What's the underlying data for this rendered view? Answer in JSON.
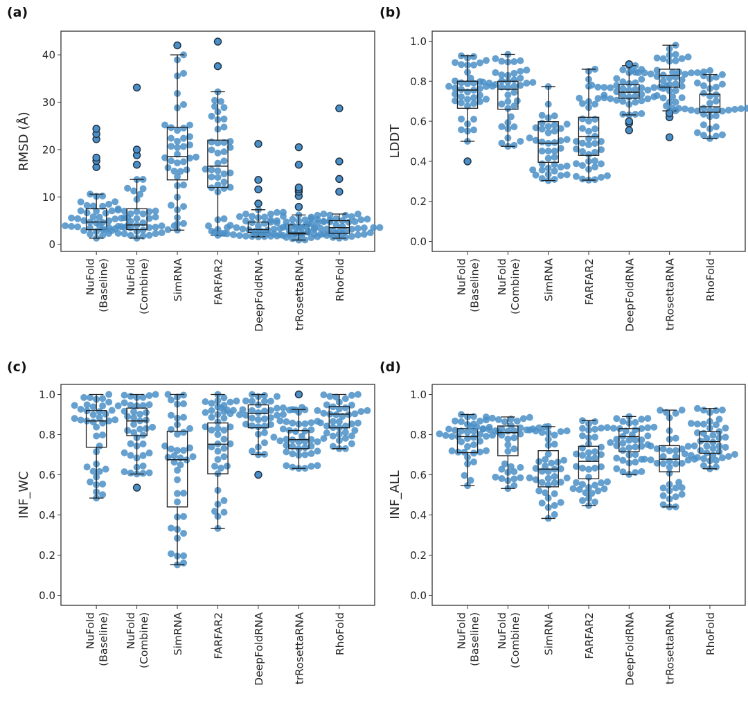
{
  "figure": {
    "categories": [
      "NuFold\n(Baseline)",
      "NuFold\n(Combine)",
      "SimRNA",
      "FARFAR2",
      "DeepFoldRNA",
      "trRosettaRNA",
      "RhoFold"
    ],
    "point_color": "#4a8fc7",
    "box_color": "#1a1a1a"
  },
  "chart_data": [
    {
      "type": "box",
      "panel_label": "(a)",
      "ylabel": "RMSD (Å)",
      "ylim": [
        -1.5,
        45
      ],
      "yticks": [
        0,
        10,
        20,
        30,
        40
      ],
      "ytick_labels": [
        "0",
        "10",
        "20",
        "30",
        "40"
      ],
      "categories": [
        "NuFold (Baseline)",
        "NuFold (Combine)",
        "SimRNA",
        "FARFAR2",
        "DeepFoldRNA",
        "trRosettaRNA",
        "RhoFold"
      ],
      "boxes": [
        {
          "q1": 3.1,
          "median": 4.7,
          "q3": 7.5,
          "whisker_low": 1.3,
          "whisker_high": 10.6,
          "outliers": [
            16.3,
            17.6,
            18.3,
            22.2,
            23.3,
            24.4
          ]
        },
        {
          "q1": 3.1,
          "median": 4.1,
          "q3": 7.5,
          "whisker_low": 1.3,
          "whisker_high": 13.7,
          "outliers": [
            16.8,
            18.8,
            20.0,
            33.1
          ]
        },
        {
          "q1": 13.6,
          "median": 18.5,
          "q3": 24.7,
          "whisker_low": 3.0,
          "whisker_high": 40.0,
          "outliers": [
            42.0
          ]
        },
        {
          "q1": 12.0,
          "median": 16.5,
          "q3": 22.0,
          "whisker_low": 1.9,
          "whisker_high": 32.2,
          "outliers": [
            37.6,
            42.8
          ]
        },
        {
          "q1": 2.5,
          "median": 3.1,
          "q3": 4.7,
          "whisker_low": 1.6,
          "whisker_high": 7.3,
          "outliers": [
            8.6,
            11.6,
            13.6,
            21.2
          ]
        },
        {
          "q1": 2.2,
          "median": 2.4,
          "q3": 4.1,
          "whisker_low": 0.9,
          "whisker_high": 6.2,
          "outliers": [
            7.9,
            10.2,
            11.1,
            11.6,
            12.0,
            16.8,
            20.5
          ]
        },
        {
          "q1": 2.3,
          "median": 3.5,
          "q3": 5.0,
          "whisker_low": 1.3,
          "whisker_high": 6.4,
          "outliers": [
            11.1,
            13.8,
            17.5,
            28.7
          ]
        }
      ]
    },
    {
      "type": "box",
      "panel_label": "(b)",
      "ylabel": "LDDT",
      "ylim": [
        -0.05,
        1.05
      ],
      "yticks": [
        0.0,
        0.2,
        0.4,
        0.6,
        0.8,
        1.0
      ],
      "ytick_labels": [
        "0.0",
        "0.2",
        "0.4",
        "0.6",
        "0.8",
        "1.0"
      ],
      "categories": [
        "NuFold (Baseline)",
        "NuFold (Combine)",
        "SimRNA",
        "FARFAR2",
        "DeepFoldRNA",
        "trRosettaRNA",
        "RhoFold"
      ],
      "boxes": [
        {
          "q1": 0.665,
          "median": 0.756,
          "q3": 0.8,
          "whisker_low": 0.5,
          "whisker_high": 0.927,
          "outliers": [
            0.4
          ]
        },
        {
          "q1": 0.66,
          "median": 0.76,
          "q3": 0.8,
          "whisker_low": 0.475,
          "whisker_high": 0.934,
          "outliers": []
        },
        {
          "q1": 0.395,
          "median": 0.49,
          "q3": 0.598,
          "whisker_low": 0.304,
          "whisker_high": 0.773,
          "outliers": []
        },
        {
          "q1": 0.43,
          "median": 0.523,
          "q3": 0.62,
          "whisker_low": 0.306,
          "whisker_high": 0.86,
          "outliers": []
        },
        {
          "q1": 0.715,
          "median": 0.745,
          "q3": 0.783,
          "whisker_low": 0.632,
          "whisker_high": 0.878,
          "outliers": [
            0.555,
            0.59,
            0.6,
            0.885
          ]
        },
        {
          "q1": 0.77,
          "median": 0.829,
          "q3": 0.86,
          "whisker_low": 0.652,
          "whisker_high": 0.98,
          "outliers": [
            0.52,
            0.62,
            0.64
          ]
        },
        {
          "q1": 0.645,
          "median": 0.672,
          "q3": 0.735,
          "whisker_low": 0.514,
          "whisker_high": 0.833,
          "outliers": []
        }
      ]
    },
    {
      "type": "box",
      "panel_label": "(c)",
      "ylabel": "INF_WC",
      "ylim": [
        -0.05,
        1.05
      ],
      "yticks": [
        0.0,
        0.2,
        0.4,
        0.6,
        0.8,
        1.0
      ],
      "ytick_labels": [
        "0.0",
        "0.2",
        "0.4",
        "0.6",
        "0.8",
        "1.0"
      ],
      "categories": [
        "NuFold (Baseline)",
        "NuFold (Combine)",
        "SimRNA",
        "FARFAR2",
        "DeepFoldRNA",
        "trRosettaRNA",
        "RhoFold"
      ],
      "boxes": [
        {
          "q1": 0.737,
          "median": 0.868,
          "q3": 0.92,
          "whisker_low": 0.484,
          "whisker_high": 1.0,
          "outliers": []
        },
        {
          "q1": 0.795,
          "median": 0.868,
          "q3": 0.932,
          "whisker_low": 0.604,
          "whisker_high": 1.0,
          "outliers": [
            0.536
          ]
        },
        {
          "q1": 0.44,
          "median": 0.675,
          "q3": 0.817,
          "whisker_low": 0.152,
          "whisker_high": 1.0,
          "outliers": []
        },
        {
          "q1": 0.605,
          "median": 0.752,
          "q3": 0.858,
          "whisker_low": 0.333,
          "whisker_high": 1.0,
          "outliers": []
        },
        {
          "q1": 0.834,
          "median": 0.906,
          "q3": 0.948,
          "whisker_low": 0.7,
          "whisker_high": 1.0,
          "outliers": [
            0.6
          ]
        },
        {
          "q1": 0.73,
          "median": 0.775,
          "q3": 0.82,
          "whisker_low": 0.632,
          "whisker_high": 0.925,
          "outliers": [
            1.0
          ]
        },
        {
          "q1": 0.834,
          "median": 0.902,
          "q3": 0.94,
          "whisker_low": 0.73,
          "whisker_high": 1.0,
          "outliers": []
        }
      ]
    },
    {
      "type": "box",
      "panel_label": "(d)",
      "ylabel": "INF_ALL",
      "ylim": [
        -0.05,
        1.05
      ],
      "yticks": [
        0.0,
        0.2,
        0.4,
        0.6,
        0.8,
        1.0
      ],
      "ytick_labels": [
        "0.0",
        "0.2",
        "0.4",
        "0.6",
        "0.8",
        "1.0"
      ],
      "categories": [
        "NuFold (Baseline)",
        "NuFold (Combine)",
        "SimRNA",
        "FARFAR2",
        "DeepFoldRNA",
        "trRosettaRNA",
        "RhoFold"
      ],
      "boxes": [
        {
          "q1": 0.71,
          "median": 0.79,
          "q3": 0.83,
          "whisker_low": 0.546,
          "whisker_high": 0.9,
          "outliers": []
        },
        {
          "q1": 0.695,
          "median": 0.81,
          "q3": 0.843,
          "whisker_low": 0.532,
          "whisker_high": 0.888,
          "outliers": []
        },
        {
          "q1": 0.54,
          "median": 0.628,
          "q3": 0.72,
          "whisker_low": 0.383,
          "whisker_high": 0.84,
          "outliers": []
        },
        {
          "q1": 0.58,
          "median": 0.667,
          "q3": 0.742,
          "whisker_low": 0.447,
          "whisker_high": 0.87,
          "outliers": []
        },
        {
          "q1": 0.715,
          "median": 0.79,
          "q3": 0.83,
          "whisker_low": 0.602,
          "whisker_high": 0.89,
          "outliers": []
        },
        {
          "q1": 0.615,
          "median": 0.677,
          "q3": 0.745,
          "whisker_low": 0.44,
          "whisker_high": 0.922,
          "outliers": []
        },
        {
          "q1": 0.707,
          "median": 0.765,
          "q3": 0.815,
          "whisker_low": 0.63,
          "whisker_high": 0.93,
          "outliers": []
        }
      ]
    }
  ]
}
